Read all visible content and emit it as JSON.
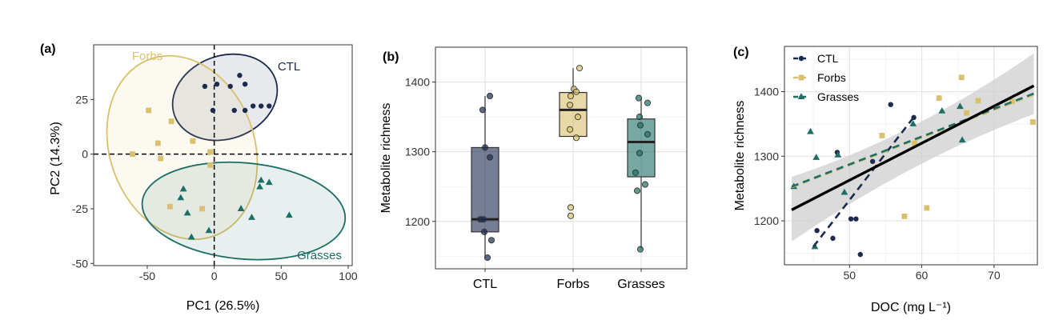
{
  "colors": {
    "ctl": "#1b2a4e",
    "forbs": "#d9c06c",
    "grasses": "#1d6f66",
    "fit": "#000000",
    "ci": "#cfcfcf"
  },
  "chart_data": [
    {
      "type": "scatter",
      "panel_label": "(a)",
      "xlabel": "PC1 (26.5%)",
      "ylabel": "PC2 (14.3%)",
      "xlim": [
        -90,
        103
      ],
      "ylim": [
        -51,
        50
      ],
      "xticks": [
        -50,
        0,
        50,
        100
      ],
      "yticks": [
        -50,
        -25,
        0,
        25
      ],
      "grid": false,
      "reference_lines": {
        "x": 0,
        "y": 0,
        "style": "dashed"
      },
      "series": [
        {
          "name": "CTL",
          "marker": "circle",
          "points": [
            [
              -7,
              31
            ],
            [
              2,
              32
            ],
            [
              12,
              31
            ],
            [
              19,
              36
            ],
            [
              23,
              32
            ],
            [
              -1,
              20
            ],
            [
              15,
              20
            ],
            [
              23,
              20
            ],
            [
              29,
              22
            ],
            [
              35,
              22
            ],
            [
              41,
              22
            ]
          ],
          "ellipse": {
            "cx": 8,
            "cy": 26,
            "rx": 40,
            "ry": 19,
            "rotation": -20
          }
        },
        {
          "name": "Forbs",
          "marker": "square",
          "points": [
            [
              -49,
              20
            ],
            [
              -32,
              15
            ],
            [
              -61,
              0
            ],
            [
              -42,
              5
            ],
            [
              -40,
              -2
            ],
            [
              -16,
              6
            ],
            [
              -3,
              1
            ],
            [
              -3,
              -5
            ],
            [
              -33,
              -24
            ],
            [
              -9,
              -25
            ]
          ],
          "ellipse": {
            "cx": -24,
            "cy": 3,
            "rx": 54,
            "ry": 43,
            "rotation": -20
          }
        },
        {
          "name": "Grasses",
          "marker": "triangle",
          "points": [
            [
              -23,
              -16
            ],
            [
              -25,
              -20
            ],
            [
              -20,
              -27
            ],
            [
              -4,
              -35
            ],
            [
              -17,
              -38
            ],
            [
              35,
              -12
            ],
            [
              41,
              -13
            ],
            [
              34,
              -15
            ],
            [
              20,
              -25
            ],
            [
              28,
              -29
            ],
            [
              56,
              -28
            ]
          ],
          "ellipse": {
            "cx": 22,
            "cy": -26,
            "rx": 76,
            "ry": 22,
            "rotation": 5
          }
        }
      ],
      "annotations": [
        {
          "text": "Forbs",
          "color": "forbs"
        },
        {
          "text": "CTL",
          "color": "ctl"
        },
        {
          "text": "Grasses",
          "color": "grasses"
        }
      ]
    },
    {
      "type": "box",
      "panel_label": "(b)",
      "xlabel": "",
      "ylabel": "Metabolite richness",
      "categories": [
        "CTL",
        "Forbs",
        "Grasses"
      ],
      "ylim": [
        1132,
        1450
      ],
      "yticks": [
        1200,
        1300,
        1400
      ],
      "grid": true,
      "boxes": [
        {
          "min": 1148,
          "q1": 1185,
          "median": 1203,
          "q3": 1306,
          "max": 1380,
          "points": [
            1380,
            1360,
            1306,
            1292,
            1203,
            1203,
            1185,
            1173,
            1148
          ]
        },
        {
          "min": 1322,
          "q1": 1322,
          "median": 1360,
          "q3": 1385,
          "max": 1420,
          "points": [
            1420,
            1390,
            1386,
            1380,
            1367,
            1350,
            1332,
            1320,
            1220,
            1208
          ]
        },
        {
          "min": 1160,
          "q1": 1264,
          "median": 1314,
          "q3": 1347,
          "max": 1377,
          "points": [
            1377,
            1370,
            1350,
            1338,
            1325,
            1298,
            1270,
            1253,
            1244,
            1160
          ]
        }
      ]
    },
    {
      "type": "scatter",
      "panel_label": "(c)",
      "xlabel": "DOC (mg L⁻¹)",
      "ylabel": "Metabolite richness",
      "xlim": [
        41,
        76
      ],
      "ylim": [
        1132,
        1470
      ],
      "xticks": [
        50,
        60,
        70
      ],
      "yticks": [
        1200,
        1300,
        1400
      ],
      "grid": true,
      "legend": {
        "position": "top-left",
        "entries": [
          "CTL",
          "Forbs",
          "Grasses"
        ]
      },
      "series": [
        {
          "name": "CTL",
          "marker": "circle",
          "points": [
            [
              45.5,
              1185
            ],
            [
              47.7,
              1173
            ],
            [
              48.3,
              1306
            ],
            [
              50.2,
              1203
            ],
            [
              50.9,
              1203
            ],
            [
              51.5,
              1148
            ],
            [
              53.2,
              1292
            ],
            [
              55.7,
              1380
            ],
            [
              58.9,
              1360
            ]
          ],
          "fit": {
            "x": [
              45,
              59
            ],
            "y": [
              1160,
              1362
            ],
            "style": "dashed"
          }
        },
        {
          "name": "Forbs",
          "marker": "square",
          "points": [
            [
              54.5,
              1332
            ],
            [
              57.6,
              1207
            ],
            [
              59.0,
              1320
            ],
            [
              60.7,
              1220
            ],
            [
              62.4,
              1390
            ],
            [
              65.5,
              1422
            ],
            [
              66.2,
              1367
            ],
            [
              67.8,
              1386
            ],
            [
              72.5,
              1385
            ],
            [
              75.4,
              1353
            ]
          ],
          "fit": {
            "x": [
              42,
              75.5
            ],
            "y": [
              1252,
              1395
            ],
            "style": "dashed"
          }
        },
        {
          "name": "Grasses",
          "marker": "triangle",
          "points": [
            [
              42.3,
              1253
            ],
            [
              44.6,
              1338
            ],
            [
              45.4,
              1298
            ],
            [
              48.4,
              1302
            ],
            [
              49.3,
              1244
            ],
            [
              45.2,
              1160
            ],
            [
              58.8,
              1350
            ],
            [
              62.8,
              1370
            ],
            [
              65.3,
              1377
            ],
            [
              65.6,
              1325
            ]
          ],
          "fit": {
            "x": [
              42,
              75.5
            ],
            "y": [
              1253,
              1397
            ],
            "style": "dashed"
          }
        },
        {
          "name": "",
          "marker": "none",
          "fit": {
            "x": [
              42,
              75.5
            ],
            "y": [
              1217,
              1409
            ],
            "style": "solid",
            "ci_upper": [
              1268,
              1459
            ],
            "ci_lower": [
              1168,
              1365
            ]
          }
        }
      ]
    }
  ]
}
